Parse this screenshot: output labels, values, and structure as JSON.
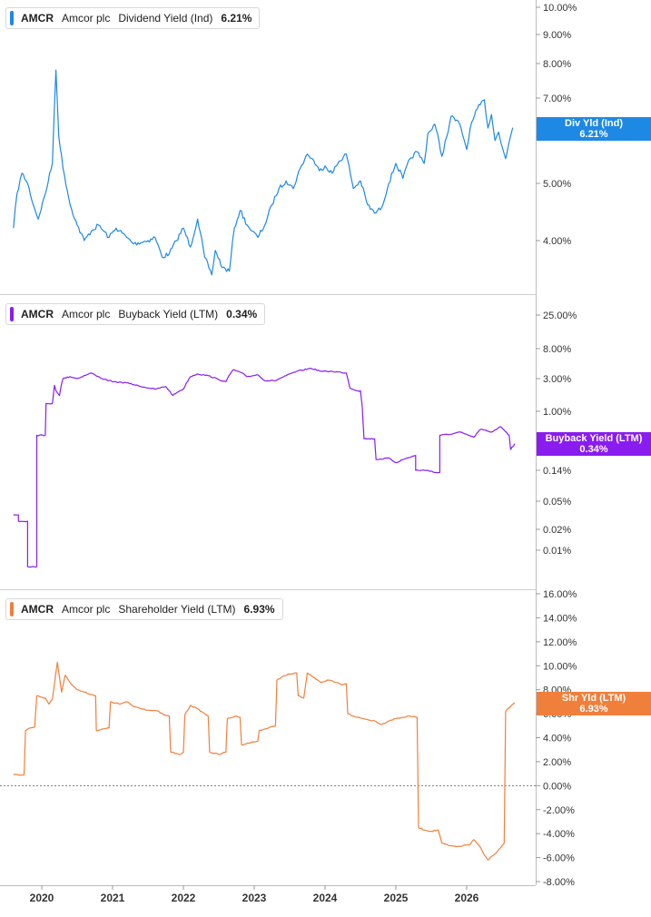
{
  "x_ticks": [
    "2020",
    "2021",
    "2022",
    "2023",
    "2024",
    "2025",
    "2026"
  ],
  "chart_data": [
    {
      "type": "line",
      "ticker": "AMCR",
      "company": "Amcor plc",
      "name": "Dividend Yield (Ind)",
      "current_value": "6.21%",
      "tag_label": "Div Yld (Ind)",
      "tag_value": "6.21%",
      "color": "#1e88e5",
      "y_scale": "log",
      "y_ticks": [
        "10.00%",
        "9.00%",
        "8.00%",
        "7.00%",
        "6.00%",
        "5.00%",
        "4.00%"
      ],
      "y_tick_values": [
        10,
        9,
        8,
        7,
        6,
        5,
        4
      ],
      "x_range": [
        2019.6,
        2026.85
      ],
      "anchors": [
        [
          2019.6,
          4.2
        ],
        [
          2019.65,
          4.8
        ],
        [
          2019.72,
          5.2
        ],
        [
          2019.8,
          5.0
        ],
        [
          2019.88,
          4.6
        ],
        [
          2019.95,
          4.35
        ],
        [
          2020.05,
          4.8
        ],
        [
          2020.15,
          5.4
        ],
        [
          2020.2,
          7.8
        ],
        [
          2020.24,
          6.0
        ],
        [
          2020.3,
          5.3
        ],
        [
          2020.4,
          4.6
        ],
        [
          2020.5,
          4.25
        ],
        [
          2020.6,
          4.0
        ],
        [
          2020.7,
          4.15
        ],
        [
          2020.8,
          4.25
        ],
        [
          2020.95,
          4.05
        ],
        [
          2021.05,
          4.2
        ],
        [
          2021.2,
          4.05
        ],
        [
          2021.3,
          3.95
        ],
        [
          2021.5,
          4.0
        ],
        [
          2021.6,
          4.05
        ],
        [
          2021.7,
          3.75
        ],
        [
          2021.8,
          3.8
        ],
        [
          2021.9,
          4.0
        ],
        [
          2022.0,
          4.2
        ],
        [
          2022.1,
          3.9
        ],
        [
          2022.2,
          4.35
        ],
        [
          2022.3,
          3.75
        ],
        [
          2022.4,
          3.5
        ],
        [
          2022.45,
          3.85
        ],
        [
          2022.55,
          3.6
        ],
        [
          2022.65,
          3.55
        ],
        [
          2022.72,
          4.2
        ],
        [
          2022.8,
          4.5
        ],
        [
          2022.9,
          4.25
        ],
        [
          2022.97,
          4.15
        ],
        [
          2023.05,
          4.05
        ],
        [
          2023.15,
          4.25
        ],
        [
          2023.25,
          4.6
        ],
        [
          2023.35,
          4.9
        ],
        [
          2023.45,
          5.05
        ],
        [
          2023.55,
          4.9
        ],
        [
          2023.65,
          5.3
        ],
        [
          2023.75,
          5.6
        ],
        [
          2023.82,
          5.5
        ],
        [
          2023.92,
          5.25
        ],
        [
          2024.0,
          5.35
        ],
        [
          2024.1,
          5.2
        ],
        [
          2024.2,
          5.45
        ],
        [
          2024.3,
          5.6
        ],
        [
          2024.4,
          4.9
        ],
        [
          2024.5,
          5.05
        ],
        [
          2024.6,
          4.6
        ],
        [
          2024.7,
          4.45
        ],
        [
          2024.8,
          4.55
        ],
        [
          2024.9,
          5.0
        ],
        [
          2025.0,
          5.4
        ],
        [
          2025.1,
          5.1
        ],
        [
          2025.2,
          5.5
        ],
        [
          2025.3,
          5.65
        ],
        [
          2025.4,
          5.4
        ],
        [
          2025.45,
          6.05
        ],
        [
          2025.55,
          6.3
        ],
        [
          2025.65,
          5.55
        ],
        [
          2025.72,
          6.0
        ],
        [
          2025.78,
          6.5
        ],
        [
          2025.9,
          6.3
        ],
        [
          2026.0,
          5.7
        ],
        [
          2026.05,
          6.2
        ],
        [
          2026.15,
          6.7
        ],
        [
          2026.25,
          6.95
        ],
        [
          2026.3,
          6.2
        ],
        [
          2026.35,
          6.55
        ],
        [
          2026.4,
          5.9
        ],
        [
          2026.45,
          6.1
        ],
        [
          2026.55,
          5.5
        ],
        [
          2026.65,
          6.21
        ]
      ]
    },
    {
      "type": "line",
      "ticker": "AMCR",
      "company": "Amcor plc",
      "name": "Buyback Yield (LTM)",
      "current_value": "0.34%",
      "tag_label": "Buyback Yield (LTM)",
      "tag_value": "0.34%",
      "color": "#8a1cf0",
      "y_scale": "log",
      "y_ticks": [
        "25.00%",
        "8.00%",
        "3.00%",
        "1.00%",
        "0.14%",
        "0.05%",
        "0.02%",
        "0.01%"
      ],
      "y_tick_values": [
        25,
        8,
        3,
        1,
        0.14,
        0.05,
        0.02,
        0.01
      ],
      "x_range": [
        2019.6,
        2026.85
      ],
      "anchors": [
        [
          2019.6,
          0.032
        ],
        [
          2019.67,
          0.032
        ],
        [
          2019.67,
          0.026
        ],
        [
          2019.8,
          0.026
        ],
        [
          2019.8,
          0.0058
        ],
        [
          2019.93,
          0.0058
        ],
        [
          2019.93,
          0.45
        ],
        [
          2020.05,
          0.45
        ],
        [
          2020.06,
          1.3
        ],
        [
          2020.15,
          1.3
        ],
        [
          2020.18,
          2.4
        ],
        [
          2020.2,
          2.0
        ],
        [
          2020.25,
          1.7
        ],
        [
          2020.3,
          3.0
        ],
        [
          2020.4,
          3.2
        ],
        [
          2020.5,
          3.0
        ],
        [
          2020.7,
          3.6
        ],
        [
          2020.85,
          3.0
        ],
        [
          2021.0,
          2.7
        ],
        [
          2021.2,
          2.6
        ],
        [
          2021.4,
          2.3
        ],
        [
          2021.6,
          2.1
        ],
        [
          2021.75,
          2.3
        ],
        [
          2021.85,
          1.7
        ],
        [
          2021.95,
          2.0
        ],
        [
          2022.0,
          2.1
        ],
        [
          2022.1,
          3.2
        ],
        [
          2022.2,
          3.5
        ],
        [
          2022.35,
          3.3
        ],
        [
          2022.5,
          2.9
        ],
        [
          2022.6,
          2.7
        ],
        [
          2022.7,
          4.0
        ],
        [
          2022.8,
          3.7
        ],
        [
          2022.9,
          3.2
        ],
        [
          2023.05,
          3.4
        ],
        [
          2023.15,
          2.8
        ],
        [
          2023.3,
          2.8
        ],
        [
          2023.45,
          3.3
        ],
        [
          2023.6,
          3.8
        ],
        [
          2023.8,
          4.2
        ],
        [
          2023.95,
          3.8
        ],
        [
          2024.1,
          3.8
        ],
        [
          2024.3,
          3.6
        ],
        [
          2024.35,
          2.2
        ],
        [
          2024.45,
          2.0
        ],
        [
          2024.5,
          2.0
        ],
        [
          2024.55,
          0.4
        ],
        [
          2024.7,
          0.4
        ],
        [
          2024.72,
          0.2
        ],
        [
          2024.9,
          0.21
        ],
        [
          2025.0,
          0.18
        ],
        [
          2025.1,
          0.2
        ],
        [
          2025.28,
          0.23
        ],
        [
          2025.28,
          0.14
        ],
        [
          2025.45,
          0.14
        ],
        [
          2025.55,
          0.13
        ],
        [
          2025.62,
          0.13
        ],
        [
          2025.62,
          0.45
        ],
        [
          2025.8,
          0.47
        ],
        [
          2025.9,
          0.5
        ],
        [
          2026.1,
          0.42
        ],
        [
          2026.2,
          0.55
        ],
        [
          2026.35,
          0.5
        ],
        [
          2026.48,
          0.6
        ],
        [
          2026.6,
          0.45
        ],
        [
          2026.62,
          0.28
        ],
        [
          2026.68,
          0.34
        ]
      ]
    },
    {
      "type": "line",
      "ticker": "AMCR",
      "company": "Amcor plc",
      "name": "Shareholder Yield (LTM)",
      "current_value": "6.93%",
      "tag_label": "Shr Yld (LTM)",
      "tag_value": "6.93%",
      "color": "#f07f3c",
      "y_scale": "linear",
      "y_ticks": [
        "16.00%",
        "14.00%",
        "12.00%",
        "10.00%",
        "8.00%",
        "6.00%",
        "4.00%",
        "2.00%",
        "0.00%",
        "-2.00%",
        "-4.00%",
        "-6.00%",
        "-8.00%"
      ],
      "y_tick_values": [
        16,
        14,
        12,
        10,
        8,
        6,
        4,
        2,
        0,
        -2,
        -4,
        -6,
        -8
      ],
      "y_range": [
        -8,
        16
      ],
      "zero_line": true,
      "x_range": [
        2019.6,
        2026.85
      ],
      "anchors": [
        [
          2019.6,
          0.9
        ],
        [
          2019.75,
          0.9
        ],
        [
          2019.77,
          4.6
        ],
        [
          2019.83,
          4.8
        ],
        [
          2019.9,
          4.9
        ],
        [
          2019.93,
          7.5
        ],
        [
          2020.05,
          7.3
        ],
        [
          2020.1,
          6.8
        ],
        [
          2020.15,
          7.2
        ],
        [
          2020.22,
          10.3
        ],
        [
          2020.28,
          7.8
        ],
        [
          2020.33,
          9.2
        ],
        [
          2020.4,
          8.6
        ],
        [
          2020.5,
          8.0
        ],
        [
          2020.6,
          7.8
        ],
        [
          2020.7,
          7.6
        ],
        [
          2020.76,
          7.5
        ],
        [
          2020.77,
          4.6
        ],
        [
          2020.95,
          4.8
        ],
        [
          2020.97,
          7.0
        ],
        [
          2021.1,
          6.8
        ],
        [
          2021.2,
          7.0
        ],
        [
          2021.3,
          6.6
        ],
        [
          2021.5,
          6.3
        ],
        [
          2021.65,
          6.2
        ],
        [
          2021.72,
          5.9
        ],
        [
          2021.8,
          5.8
        ],
        [
          2021.82,
          2.8
        ],
        [
          2021.95,
          2.6
        ],
        [
          2022.0,
          2.8
        ],
        [
          2022.02,
          5.9
        ],
        [
          2022.1,
          6.7
        ],
        [
          2022.2,
          6.4
        ],
        [
          2022.3,
          6.0
        ],
        [
          2022.35,
          5.8
        ],
        [
          2022.37,
          2.8
        ],
        [
          2022.5,
          2.6
        ],
        [
          2022.6,
          2.8
        ],
        [
          2022.62,
          5.6
        ],
        [
          2022.75,
          5.8
        ],
        [
          2022.8,
          5.7
        ],
        [
          2022.82,
          3.4
        ],
        [
          2022.95,
          3.6
        ],
        [
          2023.05,
          3.7
        ],
        [
          2023.07,
          4.6
        ],
        [
          2023.2,
          4.8
        ],
        [
          2023.3,
          5.0
        ],
        [
          2023.32,
          8.8
        ],
        [
          2023.4,
          9.1
        ],
        [
          2023.5,
          9.3
        ],
        [
          2023.6,
          9.4
        ],
        [
          2023.62,
          7.5
        ],
        [
          2023.7,
          7.3
        ],
        [
          2023.75,
          9.4
        ],
        [
          2023.85,
          9.0
        ],
        [
          2023.95,
          8.6
        ],
        [
          2024.05,
          8.8
        ],
        [
          2024.15,
          8.6
        ],
        [
          2024.25,
          8.4
        ],
        [
          2024.3,
          8.5
        ],
        [
          2024.32,
          6.0
        ],
        [
          2024.45,
          5.7
        ],
        [
          2024.6,
          5.5
        ],
        [
          2024.7,
          5.4
        ],
        [
          2024.8,
          5.1
        ],
        [
          2024.9,
          5.4
        ],
        [
          2025.0,
          5.6
        ],
        [
          2025.1,
          5.7
        ],
        [
          2025.2,
          5.8
        ],
        [
          2025.3,
          5.7
        ],
        [
          2025.32,
          -3.5
        ],
        [
          2025.4,
          -3.7
        ],
        [
          2025.5,
          -3.8
        ],
        [
          2025.6,
          -3.7
        ],
        [
          2025.65,
          -4.8
        ],
        [
          2025.75,
          -5.0
        ],
        [
          2025.85,
          -5.1
        ],
        [
          2025.95,
          -5.0
        ],
        [
          2026.05,
          -4.9
        ],
        [
          2026.1,
          -4.5
        ],
        [
          2026.2,
          -5.2
        ],
        [
          2026.25,
          -5.8
        ],
        [
          2026.3,
          -6.2
        ],
        [
          2026.35,
          -5.9
        ],
        [
          2026.42,
          -5.6
        ],
        [
          2026.5,
          -5.0
        ],
        [
          2026.53,
          -4.8
        ],
        [
          2026.55,
          6.2
        ],
        [
          2026.6,
          6.5
        ],
        [
          2026.68,
          6.93
        ]
      ]
    }
  ]
}
